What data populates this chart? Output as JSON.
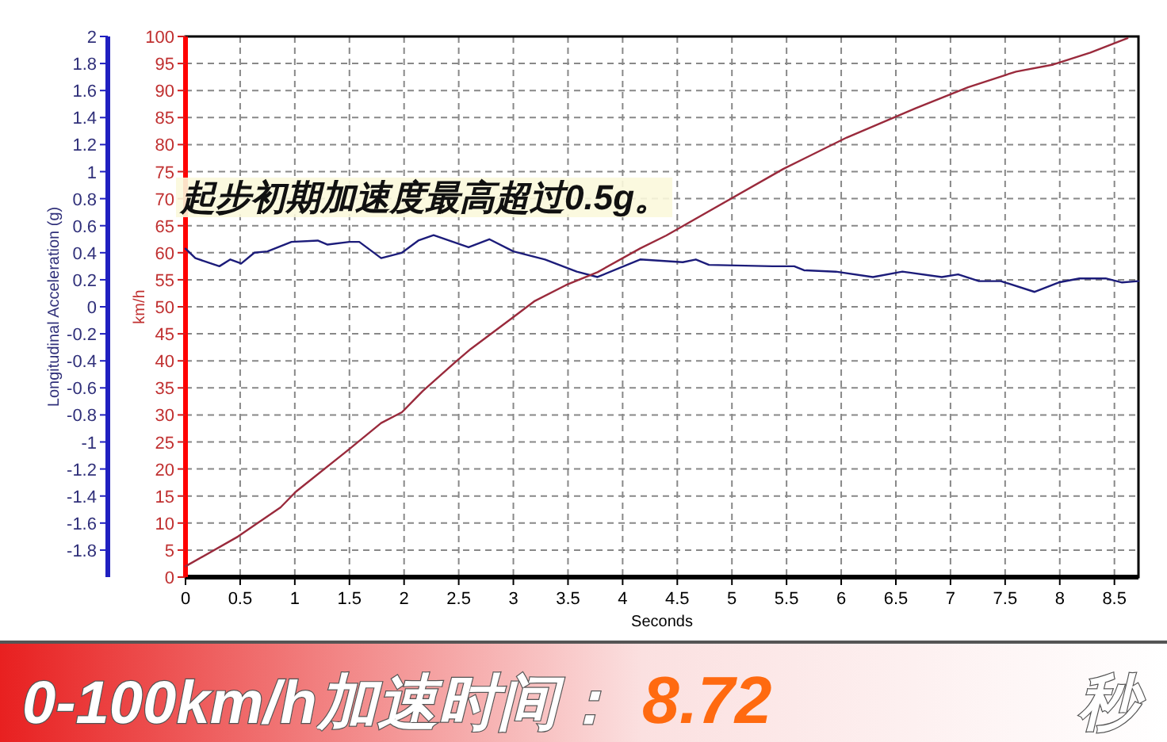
{
  "chart_data": {
    "type": "line",
    "xlabel": "Seconds",
    "ylabel": "Longitudinal Acceleration (g)",
    "y2label": "km/h",
    "annotations": [
      "起步初期加速度最高超过0.5g。",
      "0-100km/h加速时间：",
      "8.72",
      "秒"
    ],
    "series": [
      {
        "color": "#1c1c7a",
        "x": [
          0,
          0.09,
          0.31,
          0.41,
          0.51,
          0.63,
          0.75,
          0.97,
          1.21,
          1.3,
          1.5,
          1.59,
          1.79,
          1.98,
          2.13,
          2.27,
          2.59,
          2.78,
          3.0,
          3.29,
          3.58,
          3.77,
          4.16,
          4.55,
          4.67,
          4.79,
          5.37,
          5.57,
          5.66,
          5.95,
          6.29,
          6.56,
          6.92,
          7.07,
          7.26,
          7.46,
          7.77,
          7.99,
          8.18,
          8.42,
          8.57,
          8.72
        ],
        "values": [
          0.43,
          0.36,
          0.3,
          0.35,
          0.32,
          0.4,
          0.41,
          0.48,
          0.49,
          0.46,
          0.48,
          0.48,
          0.36,
          0.4,
          0.49,
          0.53,
          0.44,
          0.5,
          0.41,
          0.35,
          0.26,
          0.22,
          0.35,
          0.33,
          0.35,
          0.31,
          0.3,
          0.3,
          0.27,
          0.26,
          0.22,
          0.26,
          0.22,
          0.24,
          0.19,
          0.19,
          0.11,
          0.18,
          0.21,
          0.21,
          0.18,
          0.19
        ]
      },
      {
        "color": "#9a2a3c",
        "axis": "y2",
        "x": [
          0,
          0.48,
          0.87,
          1.01,
          1.5,
          1.79,
          1.98,
          2.17,
          2.47,
          2.61,
          3.0,
          3.19,
          3.48,
          3.77,
          4.16,
          4.4,
          5.47,
          6.05,
          6.68,
          7.16,
          7.6,
          7.94,
          8.28,
          8.62
        ],
        "values": [
          2.0,
          7.5,
          12.9,
          15.8,
          23.7,
          28.5,
          30.5,
          34.4,
          39.8,
          42.2,
          48.1,
          51,
          54,
          56.4,
          60.8,
          63.2,
          75.5,
          81.3,
          86.7,
          90.6,
          93.5,
          94.8,
          97,
          99.7
        ]
      }
    ],
    "xlim": [
      0,
      8.72
    ],
    "xticks": [
      0,
      0.5,
      1,
      1.5,
      2,
      2.5,
      3,
      3.5,
      4,
      4.5,
      5,
      5.5,
      6,
      6.5,
      7,
      7.5,
      8,
      8.5
    ],
    "ylim": [
      -2,
      2
    ],
    "yticks": [
      -1.8,
      -1.6,
      -1.4,
      -1.2,
      -1,
      -0.8,
      -0.6,
      -0.4,
      -0.2,
      0,
      0.2,
      0.4,
      0.6,
      0.8,
      1,
      1.2,
      1.4,
      1.6,
      1.8,
      2
    ],
    "y2lim": [
      0,
      100
    ],
    "y2ticks": [
      0,
      5,
      10,
      15,
      20,
      25,
      30,
      35,
      40,
      45,
      50,
      55,
      60,
      65,
      70,
      75,
      80,
      85,
      90,
      95,
      100
    ],
    "grid": true,
    "line_style": "solid"
  }
}
